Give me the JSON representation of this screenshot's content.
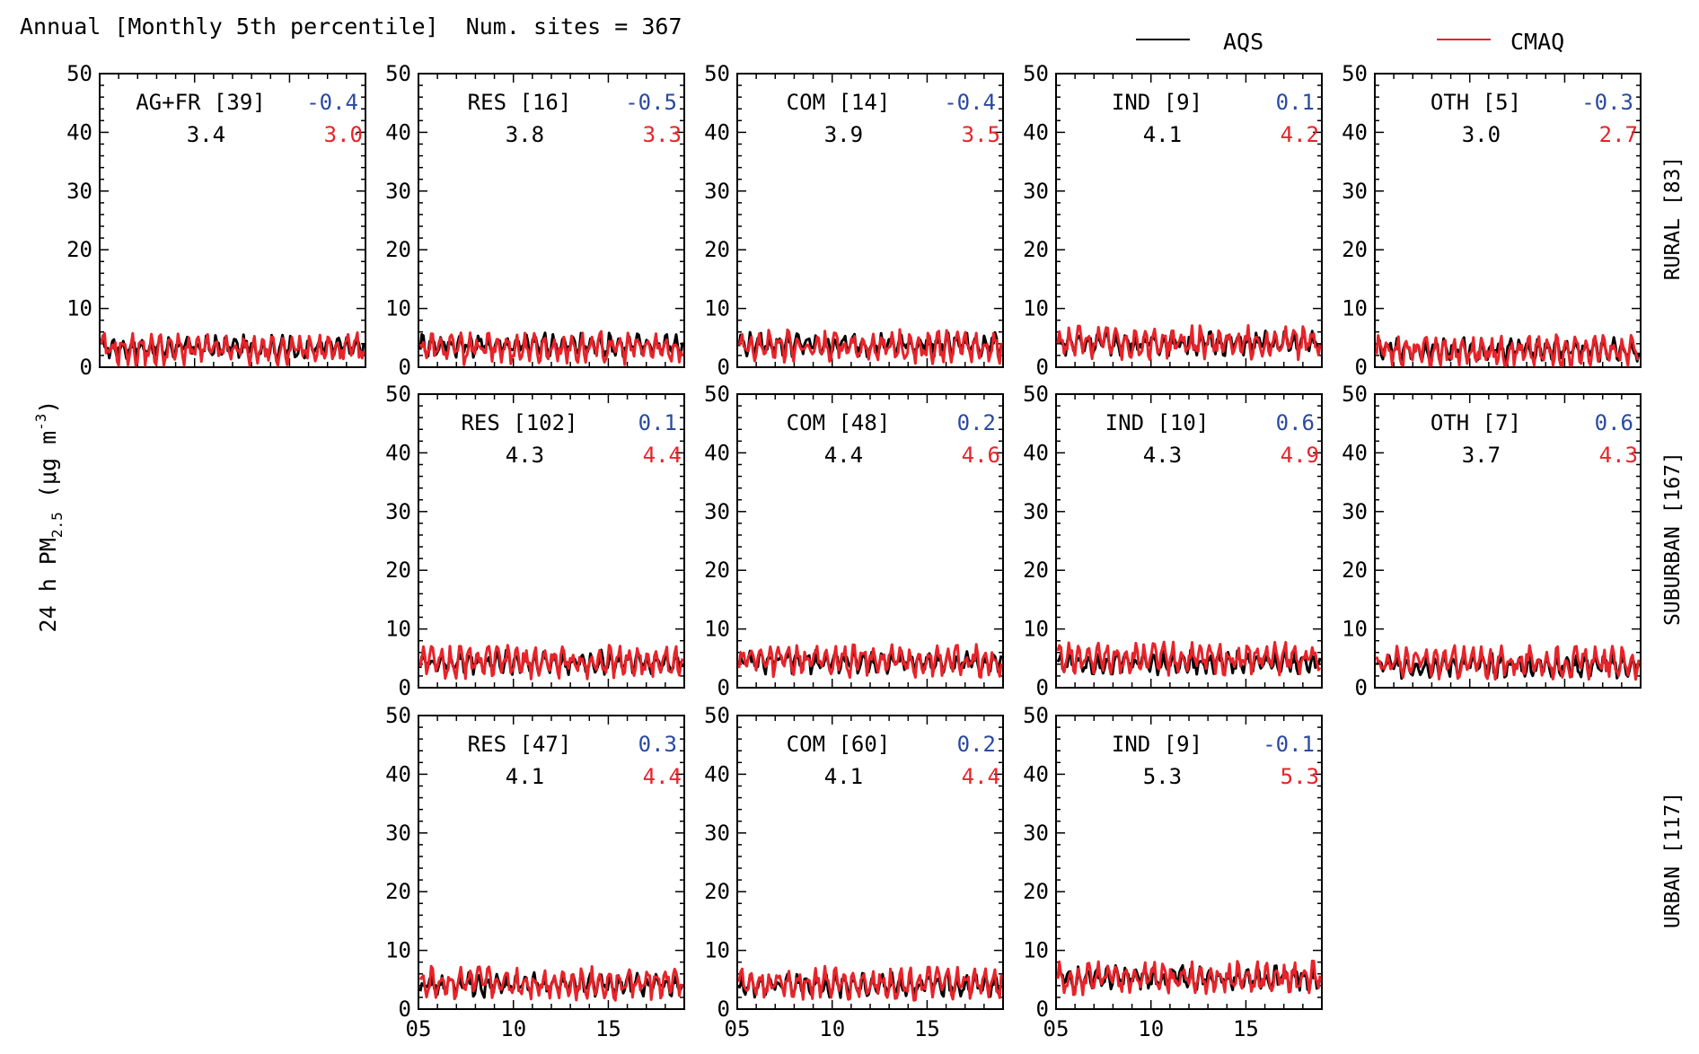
{
  "header": {
    "title": "Annual [Monthly 5th percentile]  Num. sites = 367",
    "legend": [
      {
        "label": "AQS",
        "color": "#000000"
      },
      {
        "label": "CMAQ",
        "color": "#e8232a"
      }
    ]
  },
  "ylabel": {
    "main": "24 h PM",
    "sub": "2.5",
    "unit_open": " (μg m",
    "sup": "-3",
    "unit_close": ")"
  },
  "rows": [
    {
      "label": "RURAL [83]"
    },
    {
      "label": "SUBURBAN [167]"
    },
    {
      "label": "URBAN [117]"
    }
  ],
  "colors": {
    "obs": "#000000",
    "model": "#e8232a",
    "bias": "#2a4aa0"
  },
  "axis": {
    "y_ticks": [
      "0",
      "10",
      "20",
      "30",
      "40",
      "50"
    ],
    "x_ticks": [
      "05",
      "10",
      "15"
    ],
    "ylim": [
      0,
      50
    ],
    "xlim": [
      2005,
      2019
    ],
    "x_tick_values": [
      2005,
      2010,
      2015
    ]
  },
  "chart_data": {
    "type": "line",
    "title": "Annual [Monthly 5th percentile]  Num. sites = 367",
    "xlabel": "",
    "ylabel": "24 h PM2.5 (μg m-3)",
    "ylim": [
      0,
      50
    ],
    "panels": [
      {
        "row": 0,
        "col": 0,
        "title": "AG+FR [39]",
        "bias": "-0.4",
        "obs_mean": "3.4",
        "model_mean": "3.0",
        "obs_level": 3.4,
        "model_level": 3.0
      },
      {
        "row": 0,
        "col": 1,
        "title": "RES [16]",
        "bias": "-0.5",
        "obs_mean": "3.8",
        "model_mean": "3.3",
        "obs_level": 3.8,
        "model_level": 3.3
      },
      {
        "row": 0,
        "col": 2,
        "title": "COM [14]",
        "bias": "-0.4",
        "obs_mean": "3.9",
        "model_mean": "3.5",
        "obs_level": 3.9,
        "model_level": 3.5
      },
      {
        "row": 0,
        "col": 3,
        "title": "IND [9]",
        "bias": "0.1",
        "obs_mean": "4.1",
        "model_mean": "4.2",
        "obs_level": 4.1,
        "model_level": 4.2
      },
      {
        "row": 0,
        "col": 4,
        "title": "OTH [5]",
        "bias": "-0.3",
        "obs_mean": "3.0",
        "model_mean": "2.7",
        "obs_level": 3.0,
        "model_level": 2.7
      },
      {
        "row": 1,
        "col": 1,
        "title": "RES [102]",
        "bias": "0.1",
        "obs_mean": "4.3",
        "model_mean": "4.4",
        "obs_level": 4.3,
        "model_level": 4.4
      },
      {
        "row": 1,
        "col": 2,
        "title": "COM [48]",
        "bias": "0.2",
        "obs_mean": "4.4",
        "model_mean": "4.6",
        "obs_level": 4.4,
        "model_level": 4.6
      },
      {
        "row": 1,
        "col": 3,
        "title": "IND [10]",
        "bias": "0.6",
        "obs_mean": "4.3",
        "model_mean": "4.9",
        "obs_level": 4.3,
        "model_level": 4.9
      },
      {
        "row": 1,
        "col": 4,
        "title": "OTH [7]",
        "bias": "0.6",
        "obs_mean": "3.7",
        "model_mean": "4.3",
        "obs_level": 3.7,
        "model_level": 4.3
      },
      {
        "row": 2,
        "col": 1,
        "title": "RES [47]",
        "bias": "0.3",
        "obs_mean": "4.1",
        "model_mean": "4.4",
        "obs_level": 4.1,
        "model_level": 4.4
      },
      {
        "row": 2,
        "col": 2,
        "title": "COM [60]",
        "bias": "0.2",
        "obs_mean": "4.1",
        "model_mean": "4.4",
        "obs_level": 4.1,
        "model_level": 4.4
      },
      {
        "row": 2,
        "col": 3,
        "title": "IND [9]",
        "bias": "-0.1",
        "obs_mean": "5.3",
        "model_mean": "5.3",
        "obs_level": 5.3,
        "model_level": 5.3
      }
    ]
  }
}
